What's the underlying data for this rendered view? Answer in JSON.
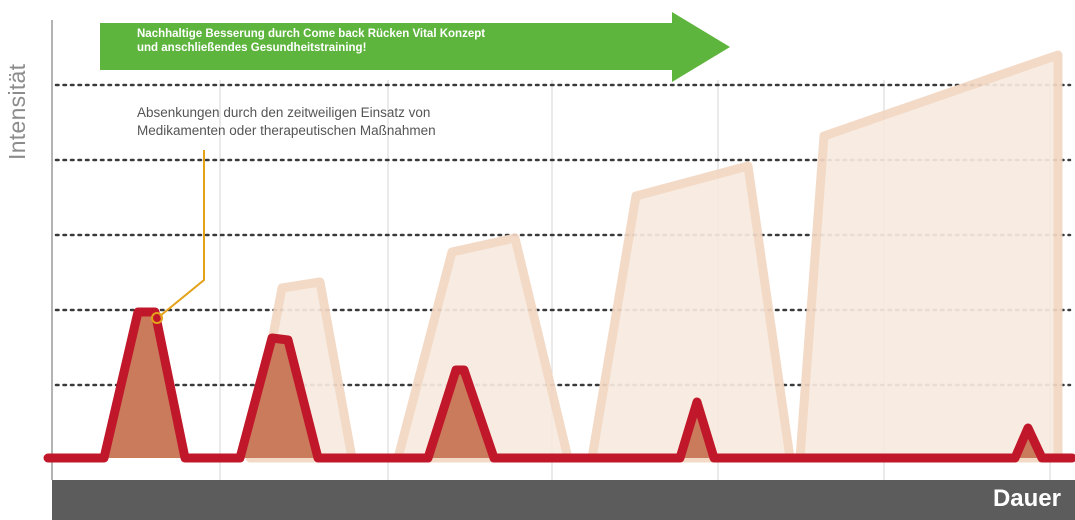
{
  "axes": {
    "y_label": "Intensität",
    "x_label": "Dauer"
  },
  "banner": {
    "line1": "Nachhaltige Besserung durch Come back Rücken Vital Konzept",
    "line2": "und anschließendes Gesundheitstraining!"
  },
  "annotation": {
    "line1": "Absenkungen durch den zeitweiligen Einsatz von",
    "line2": "Medikamenten oder therapeutischen Maßnahmen"
  },
  "colors": {
    "pain_line": "#c0182a",
    "pain_fill": "#c97b5c",
    "untreated_fill": "#f8ebe0",
    "untreated_line": "#f1d6c2",
    "arrow": "#5db53d",
    "annotation_line": "#e3a21a",
    "axis_bar": "#5c5c5c"
  }
}
